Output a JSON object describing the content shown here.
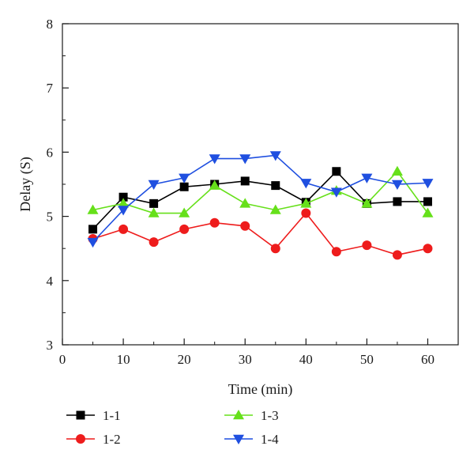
{
  "chart_data": {
    "type": "line",
    "xlabel": "Time (min)",
    "ylabel": "Delay (S)",
    "xlim": [
      0,
      65
    ],
    "ylim": [
      3,
      8
    ],
    "xticks": [
      0,
      10,
      20,
      30,
      40,
      50,
      60
    ],
    "yticks": [
      3,
      4,
      5,
      6,
      7,
      8
    ],
    "grid": false,
    "legend_position": "bottom",
    "x": [
      5,
      10,
      15,
      20,
      25,
      30,
      35,
      40,
      45,
      50,
      55,
      60
    ],
    "series": [
      {
        "name": "1-1",
        "color": "#000000",
        "marker": "square",
        "values": [
          4.8,
          5.3,
          5.2,
          5.46,
          5.5,
          5.55,
          5.48,
          5.22,
          5.7,
          5.2,
          5.23,
          5.23
        ]
      },
      {
        "name": "1-2",
        "color": "#ee1c1c",
        "marker": "circle",
        "values": [
          4.65,
          4.8,
          4.6,
          4.8,
          4.9,
          4.85,
          4.5,
          5.05,
          4.45,
          4.55,
          4.4,
          4.5
        ]
      },
      {
        "name": "1-3",
        "color": "#66e01a",
        "marker": "triangle-up",
        "values": [
          5.1,
          5.2,
          5.05,
          5.05,
          5.48,
          5.2,
          5.1,
          5.2,
          5.4,
          5.2,
          5.7,
          5.05
        ]
      },
      {
        "name": "1-4",
        "color": "#1f4fe0",
        "marker": "triangle-down",
        "values": [
          4.6,
          5.1,
          5.5,
          5.6,
          5.9,
          5.9,
          5.95,
          5.52,
          5.38,
          5.6,
          5.5,
          5.52
        ]
      }
    ]
  }
}
